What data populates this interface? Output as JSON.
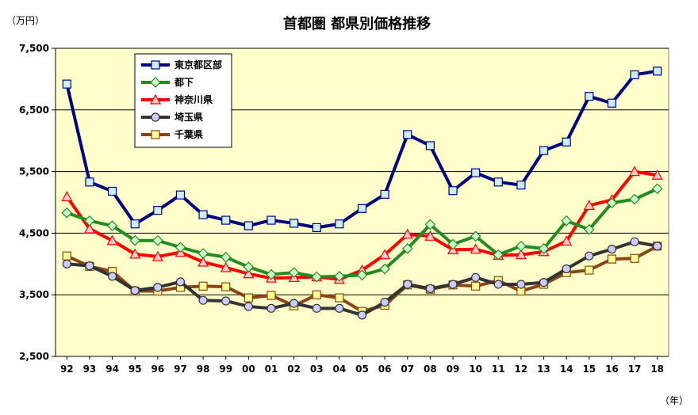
{
  "chart_data": {
    "type": "line",
    "title": "首都圏 都県別価格推移",
    "y_unit_label": "（万円）",
    "x_unit_label": "（年）",
    "ylim": [
      2500,
      7500
    ],
    "yticks": [
      2500,
      3500,
      4500,
      5500,
      6500,
      7500
    ],
    "ytick_labels": [
      "2,500",
      "3,500",
      "4,500",
      "5,500",
      "6,500",
      "7,500"
    ],
    "grid": true,
    "legend_position": "top-left",
    "background_color": "#FFFFCC",
    "categories": [
      "92",
      "93",
      "94",
      "95",
      "96",
      "97",
      "98",
      "99",
      "00",
      "01",
      "02",
      "03",
      "04",
      "05",
      "06",
      "07",
      "08",
      "09",
      "10",
      "11",
      "12",
      "13",
      "14",
      "15",
      "16",
      "17",
      "18"
    ],
    "series": [
      {
        "name": "東京都区部",
        "color": "#000080",
        "marker": "square",
        "marker_fill": "#CCECFF",
        "values": [
          6920,
          5330,
          5180,
          4650,
          4870,
          5120,
          4800,
          4710,
          4620,
          4710,
          4660,
          4590,
          4650,
          4900,
          5130,
          6100,
          5920,
          5190,
          5480,
          5330,
          5280,
          5840,
          5980,
          6720,
          6610,
          7070,
          7130
        ]
      },
      {
        "name": "都下",
        "color": "#228B22",
        "marker": "diamond",
        "marker_fill": "#CCFFCC",
        "values": [
          4830,
          4700,
          4620,
          4380,
          4380,
          4270,
          4170,
          4110,
          3950,
          3830,
          3860,
          3790,
          3800,
          3820,
          3920,
          4250,
          4640,
          4320,
          4450,
          4150,
          4290,
          4250,
          4700,
          4560,
          4990,
          5050,
          5220
        ]
      },
      {
        "name": "神奈川県",
        "color": "#FF0000",
        "marker": "triangle",
        "marker_fill": "#FFCCCC",
        "values": [
          5090,
          4570,
          4380,
          4160,
          4120,
          4190,
          4030,
          3940,
          3840,
          3770,
          3780,
          3790,
          3750,
          3900,
          4150,
          4480,
          4450,
          4230,
          4240,
          4140,
          4150,
          4200,
          4370,
          4950,
          5040,
          5500,
          5440
        ]
      },
      {
        "name": "埼玉県",
        "color": "#333333",
        "marker": "circle",
        "marker_fill": "#CCCCFF",
        "values": [
          4000,
          3970,
          3800,
          3570,
          3620,
          3710,
          3410,
          3400,
          3310,
          3280,
          3360,
          3280,
          3280,
          3170,
          3380,
          3670,
          3600,
          3670,
          3780,
          3670,
          3670,
          3700,
          3920,
          4130,
          4240,
          4360,
          4290
        ]
      },
      {
        "name": "千葉県",
        "color": "#8B4513",
        "marker": "square",
        "marker_fill": "#FFFF99",
        "values": [
          4130,
          3960,
          3880,
          3560,
          3560,
          3620,
          3640,
          3630,
          3450,
          3490,
          3320,
          3500,
          3450,
          3230,
          3330,
          3660,
          3590,
          3660,
          3640,
          3730,
          3560,
          3670,
          3860,
          3900,
          4080,
          4090,
          4290
        ]
      }
    ]
  }
}
